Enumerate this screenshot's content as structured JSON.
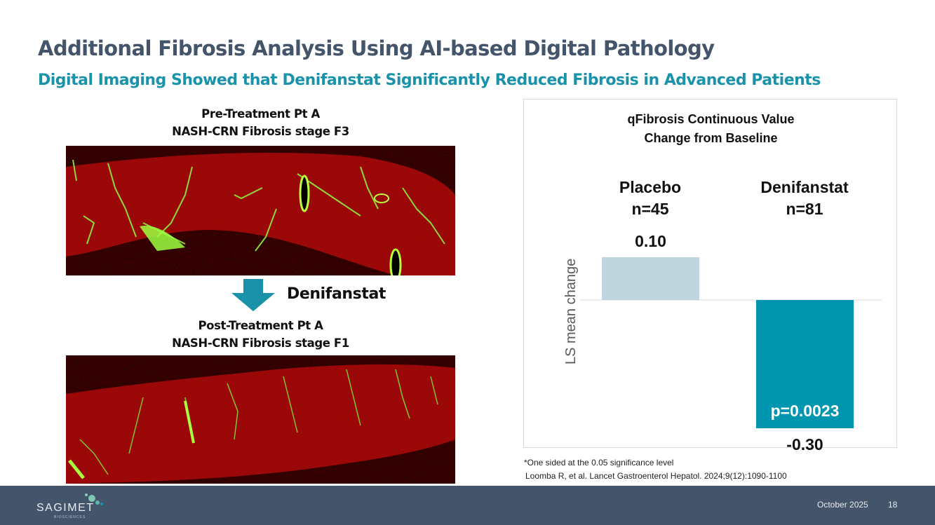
{
  "title": "Additional Fibrosis Analysis Using AI-based Digital Pathology",
  "subtitle": "Digital Imaging Showed that Denifanstat Significantly Reduced Fibrosis in Advanced Patients",
  "pre_treatment": {
    "line1": "Pre-Treatment Pt A",
    "line2": "NASH-CRN Fibrosis stage F3"
  },
  "post_treatment": {
    "line1": "Post-Treatment Pt A",
    "line2": "NASH-CRN Fibrosis stage F1"
  },
  "arrow_label": "Denifanstat",
  "icons": {
    "arrow": "arrow-down-icon"
  },
  "colors": {
    "title": "#44546A",
    "subtitle": "#1A93AA",
    "placebo": "#BFD5DD",
    "denifanstat": "#0096B0",
    "footer": "#44546A",
    "tissue": "#8B0A0A",
    "fibrosis": "#7CFC3A"
  },
  "chart_data": {
    "type": "bar",
    "title_line1": "qFibrosis Continuous Value",
    "title_line2": "Change from Baseline",
    "ylabel": "LS mean change",
    "categories": [
      {
        "name": "Placebo",
        "n": "n=45"
      },
      {
        "name": "Denifanstat",
        "n": "n=81"
      }
    ],
    "values": [
      0.1,
      -0.3
    ],
    "value_labels": [
      "0.10",
      "-0.30"
    ],
    "annotation": "p=0.0023",
    "ylim": [
      -0.3,
      0.1
    ],
    "grid": false
  },
  "footnote": "*One sided at the 0.05 significance level",
  "citation": "Loomba R, et al. Lancet Gastroenterol Hepatol. 2024;9(12):1090-1100",
  "footer": {
    "logo_text": "SAGIMET",
    "logo_subtext": "BIOSCIENCES",
    "date": "October 2025",
    "page": "18"
  }
}
